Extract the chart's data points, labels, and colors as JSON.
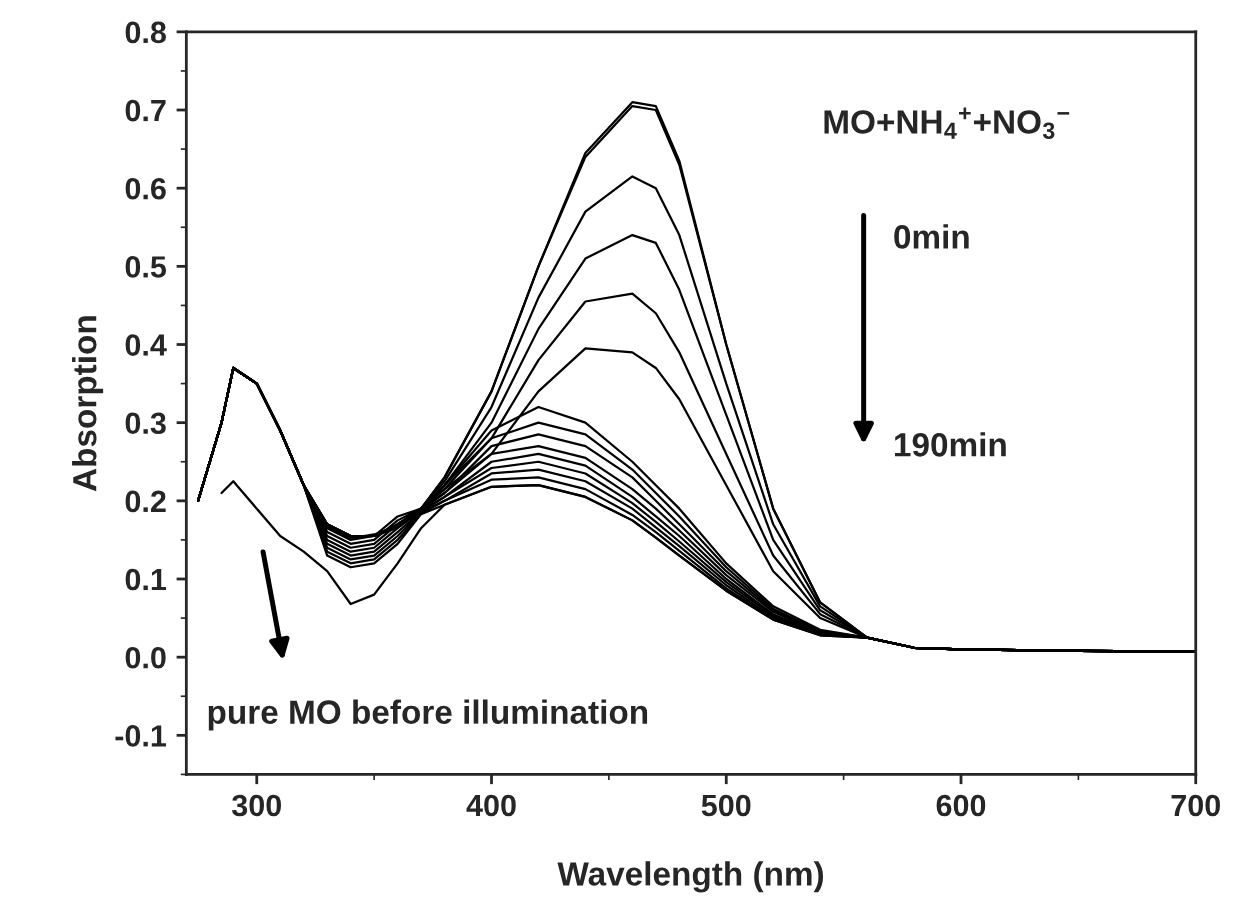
{
  "chart_data": {
    "type": "line",
    "xlabel": "Wavelength (nm)",
    "ylabel": "Absorption",
    "annotations": [
      "MO+NH$_{4}$$^{+}$+NO$_{3}$$^{−}$",
      "0min",
      "190min",
      "pure MO before illumination"
    ],
    "x": [
      275,
      285,
      290,
      300,
      310,
      320,
      330,
      340,
      350,
      360,
      370,
      380,
      400,
      420,
      440,
      460,
      470,
      480,
      500,
      520,
      540,
      560,
      580,
      600,
      650,
      700
    ],
    "xlim": [
      270,
      700
    ],
    "xticks": [
      300,
      400,
      500,
      600,
      700
    ],
    "ylim": [
      -0.15,
      0.8
    ],
    "yticks": [
      {
        "value": -0.1,
        "label": "-0.1"
      },
      {
        "value": 0.0,
        "label": "0.0"
      },
      0.1,
      0.2,
      0.3,
      0.4,
      0.5,
      0.6,
      0.7,
      0.8
    ],
    "grid": false,
    "legend": false,
    "marker": "none",
    "line_style": "solid",
    "series": [
      {
        "color": "#000000",
        "values": [
          0.2,
          0.3,
          0.37,
          0.35,
          0.29,
          0.22,
          0.17,
          0.155,
          0.155,
          0.17,
          0.19,
          0.23,
          0.34,
          0.5,
          0.64,
          0.705,
          0.7,
          0.63,
          0.4,
          0.19,
          0.07,
          0.025,
          0.012,
          0.01,
          0.008,
          0.007
        ]
      },
      {
        "color": "#000000",
        "values": [
          0.2,
          0.3,
          0.37,
          0.35,
          0.29,
          0.22,
          0.17,
          0.155,
          0.155,
          0.17,
          0.19,
          0.23,
          0.34,
          0.5,
          0.645,
          0.71,
          0.705,
          0.635,
          0.4,
          0.19,
          0.07,
          0.025,
          0.012,
          0.01,
          0.008,
          0.007
        ]
      },
      {
        "color": "#000000",
        "values": [
          0.2,
          0.3,
          0.37,
          0.35,
          0.29,
          0.22,
          0.17,
          0.155,
          0.155,
          0.168,
          0.19,
          0.225,
          0.32,
          0.46,
          0.57,
          0.615,
          0.6,
          0.54,
          0.35,
          0.17,
          0.065,
          0.025,
          0.012,
          0.01,
          0.008,
          0.007
        ]
      },
      {
        "color": "#000000",
        "values": [
          0.2,
          0.3,
          0.37,
          0.35,
          0.29,
          0.22,
          0.17,
          0.155,
          0.155,
          0.167,
          0.19,
          0.22,
          0.3,
          0.42,
          0.51,
          0.54,
          0.53,
          0.47,
          0.31,
          0.15,
          0.06,
          0.025,
          0.012,
          0.01,
          0.008,
          0.007
        ]
      },
      {
        "color": "#000000",
        "values": [
          0.2,
          0.3,
          0.37,
          0.35,
          0.29,
          0.22,
          0.168,
          0.155,
          0.155,
          0.166,
          0.19,
          0.22,
          0.28,
          0.38,
          0.455,
          0.465,
          0.44,
          0.39,
          0.26,
          0.13,
          0.055,
          0.025,
          0.012,
          0.01,
          0.008,
          0.007
        ]
      },
      {
        "color": "#000000",
        "values": [
          0.2,
          0.3,
          0.37,
          0.35,
          0.29,
          0.22,
          0.168,
          0.153,
          0.155,
          0.166,
          0.19,
          0.215,
          0.26,
          0.34,
          0.395,
          0.39,
          0.37,
          0.33,
          0.22,
          0.11,
          0.05,
          0.025,
          0.012,
          0.01,
          0.008,
          0.007
        ]
      },
      {
        "color": "#000000",
        "values": [
          0.2,
          0.3,
          0.37,
          0.35,
          0.29,
          0.22,
          0.167,
          0.152,
          0.157,
          0.167,
          0.19,
          0.22,
          0.29,
          0.32,
          0.3,
          0.25,
          0.22,
          0.19,
          0.12,
          0.065,
          0.035,
          0.025,
          0.012,
          0.01,
          0.008,
          0.007
        ]
      },
      {
        "color": "#000000",
        "values": [
          0.2,
          0.3,
          0.37,
          0.35,
          0.29,
          0.22,
          0.165,
          0.15,
          0.155,
          0.18,
          0.19,
          0.215,
          0.28,
          0.3,
          0.285,
          0.24,
          0.21,
          0.18,
          0.115,
          0.062,
          0.033,
          0.025,
          0.012,
          0.01,
          0.008,
          0.007
        ]
      },
      {
        "color": "#000000",
        "values": [
          0.2,
          0.3,
          0.37,
          0.35,
          0.29,
          0.22,
          0.16,
          0.145,
          0.15,
          0.175,
          0.19,
          0.21,
          0.27,
          0.285,
          0.27,
          0.23,
          0.2,
          0.17,
          0.11,
          0.06,
          0.032,
          0.025,
          0.012,
          0.01,
          0.008,
          0.007
        ]
      },
      {
        "color": "#000000",
        "values": [
          0.2,
          0.3,
          0.37,
          0.35,
          0.29,
          0.22,
          0.155,
          0.14,
          0.145,
          0.17,
          0.188,
          0.21,
          0.26,
          0.27,
          0.255,
          0.215,
          0.19,
          0.162,
          0.105,
          0.058,
          0.031,
          0.025,
          0.012,
          0.01,
          0.008,
          0.007
        ]
      },
      {
        "color": "#000000",
        "values": [
          0.2,
          0.3,
          0.37,
          0.35,
          0.29,
          0.22,
          0.15,
          0.135,
          0.14,
          0.165,
          0.187,
          0.205,
          0.25,
          0.26,
          0.245,
          0.205,
          0.18,
          0.155,
          0.1,
          0.055,
          0.03,
          0.025,
          0.012,
          0.01,
          0.008,
          0.007
        ]
      },
      {
        "color": "#000000",
        "values": [
          0.2,
          0.3,
          0.37,
          0.35,
          0.29,
          0.22,
          0.145,
          0.13,
          0.135,
          0.16,
          0.186,
          0.205,
          0.242,
          0.25,
          0.235,
          0.197,
          0.173,
          0.148,
          0.096,
          0.053,
          0.03,
          0.025,
          0.012,
          0.01,
          0.008,
          0.007
        ]
      },
      {
        "color": "#000000",
        "values": [
          0.2,
          0.3,
          0.37,
          0.35,
          0.29,
          0.22,
          0.14,
          0.125,
          0.13,
          0.155,
          0.185,
          0.2,
          0.235,
          0.24,
          0.225,
          0.19,
          0.166,
          0.142,
          0.092,
          0.051,
          0.029,
          0.025,
          0.012,
          0.01,
          0.008,
          0.007
        ]
      },
      {
        "color": "#000000",
        "values": [
          0.2,
          0.3,
          0.37,
          0.35,
          0.29,
          0.22,
          0.135,
          0.12,
          0.125,
          0.15,
          0.184,
          0.2,
          0.227,
          0.23,
          0.215,
          0.182,
          0.16,
          0.136,
          0.088,
          0.05,
          0.029,
          0.025,
          0.012,
          0.01,
          0.008,
          0.007
        ]
      },
      {
        "color": "#000000",
        "values": [
          0.2,
          0.3,
          0.37,
          0.35,
          0.29,
          0.22,
          0.13,
          0.115,
          0.12,
          0.145,
          0.183,
          0.195,
          0.218,
          0.22,
          0.205,
          0.175,
          0.153,
          0.13,
          0.085,
          0.048,
          0.028,
          0.025,
          0.012,
          0.01,
          0.008,
          0.007
        ]
      },
      {
        "color": "#000000",
        "values": [
          null,
          0.21,
          0.225,
          0.19,
          0.155,
          0.135,
          0.11,
          0.068,
          0.08,
          0.12,
          0.165,
          0.195,
          0.218,
          0.22,
          0.205,
          0.175,
          0.153,
          0.13,
          0.085,
          0.048,
          0.028,
          0.025,
          0.012,
          0.01,
          0.008,
          0.007
        ]
      }
    ]
  }
}
